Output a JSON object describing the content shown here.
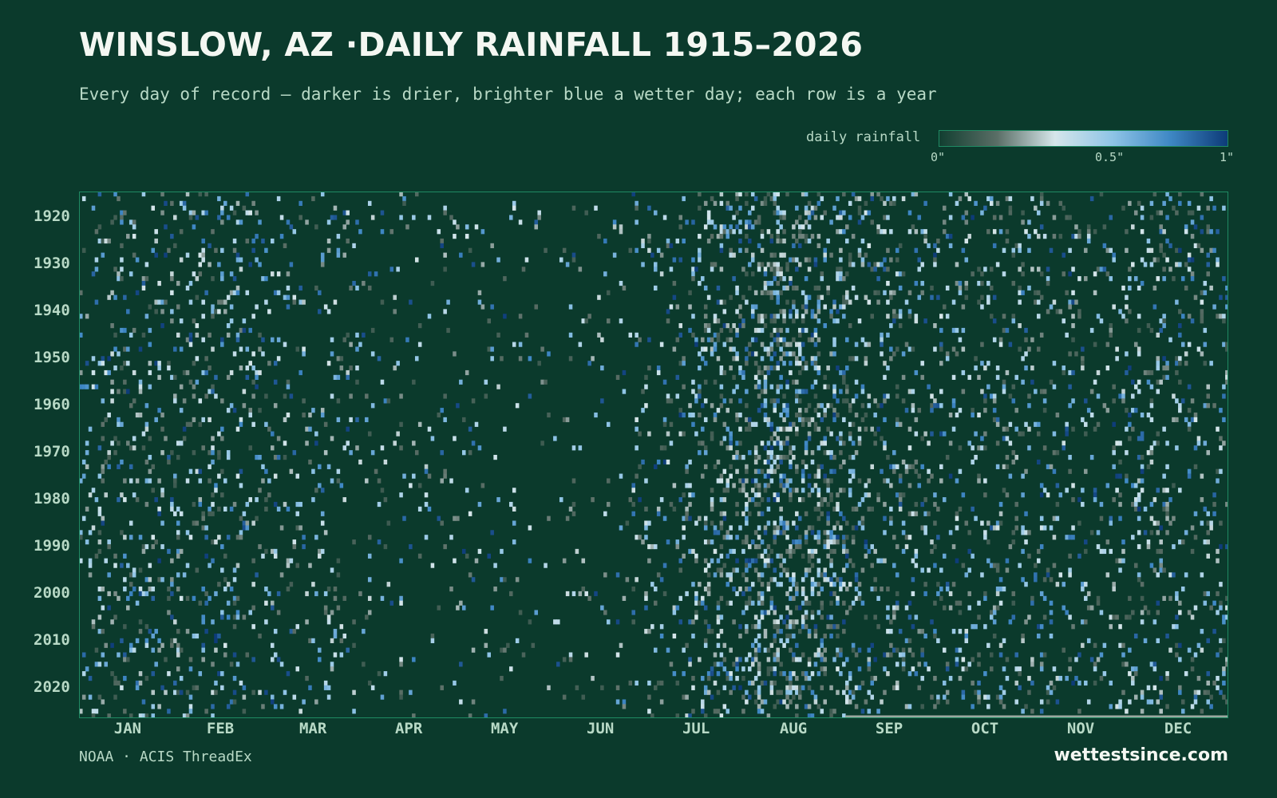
{
  "header": {
    "title": "WINSLOW, AZ ·DAILY RAINFALL 1915–2026",
    "subtitle": "Every day of record — darker is drier, brighter blue a wetter day; each row is a year"
  },
  "legend": {
    "label": "daily rainfall",
    "ticks": [
      "0\"",
      "0.5\"",
      "1\""
    ],
    "tick_values": [
      0,
      0.5,
      1
    ]
  },
  "footer": {
    "source": "NOAA · ACIS ThreadEx",
    "brand": "wettestsince.com"
  },
  "colors": {
    "background": "#0b3a2c",
    "frame": "#1f8a63",
    "text_light": "#f4f7f2",
    "text_muted": "#b8d9c6",
    "scale": [
      "#123f31",
      "#5a6e66",
      "#d6e6ea",
      "#8fc4e6",
      "#3f88c5",
      "#0d3b78"
    ],
    "no_data": "#9aa8a0"
  },
  "chart_data": {
    "type": "heatmap",
    "title": "WINSLOW, AZ ·DAILY RAINFALL 1915–2026",
    "subtitle": "Every day of record — darker is drier, brighter blue a wetter day; each row is a year",
    "x_categories": [
      "JAN",
      "FEB",
      "MAR",
      "APR",
      "MAY",
      "JUN",
      "JUL",
      "AUG",
      "SEP",
      "OCT",
      "NOV",
      "DEC"
    ],
    "y_tick_labels": [
      "1920",
      "1930",
      "1940",
      "1950",
      "1960",
      "1970",
      "1980",
      "1990",
      "2000",
      "2010",
      "2020"
    ],
    "y_range": [
      1915,
      2026
    ],
    "x_range_days": [
      1,
      366
    ],
    "value_range": [
      0,
      1
    ],
    "units": "inches",
    "color_legend": "daily rainfall",
    "grid": false,
    "legend_position": "top-right"
  }
}
